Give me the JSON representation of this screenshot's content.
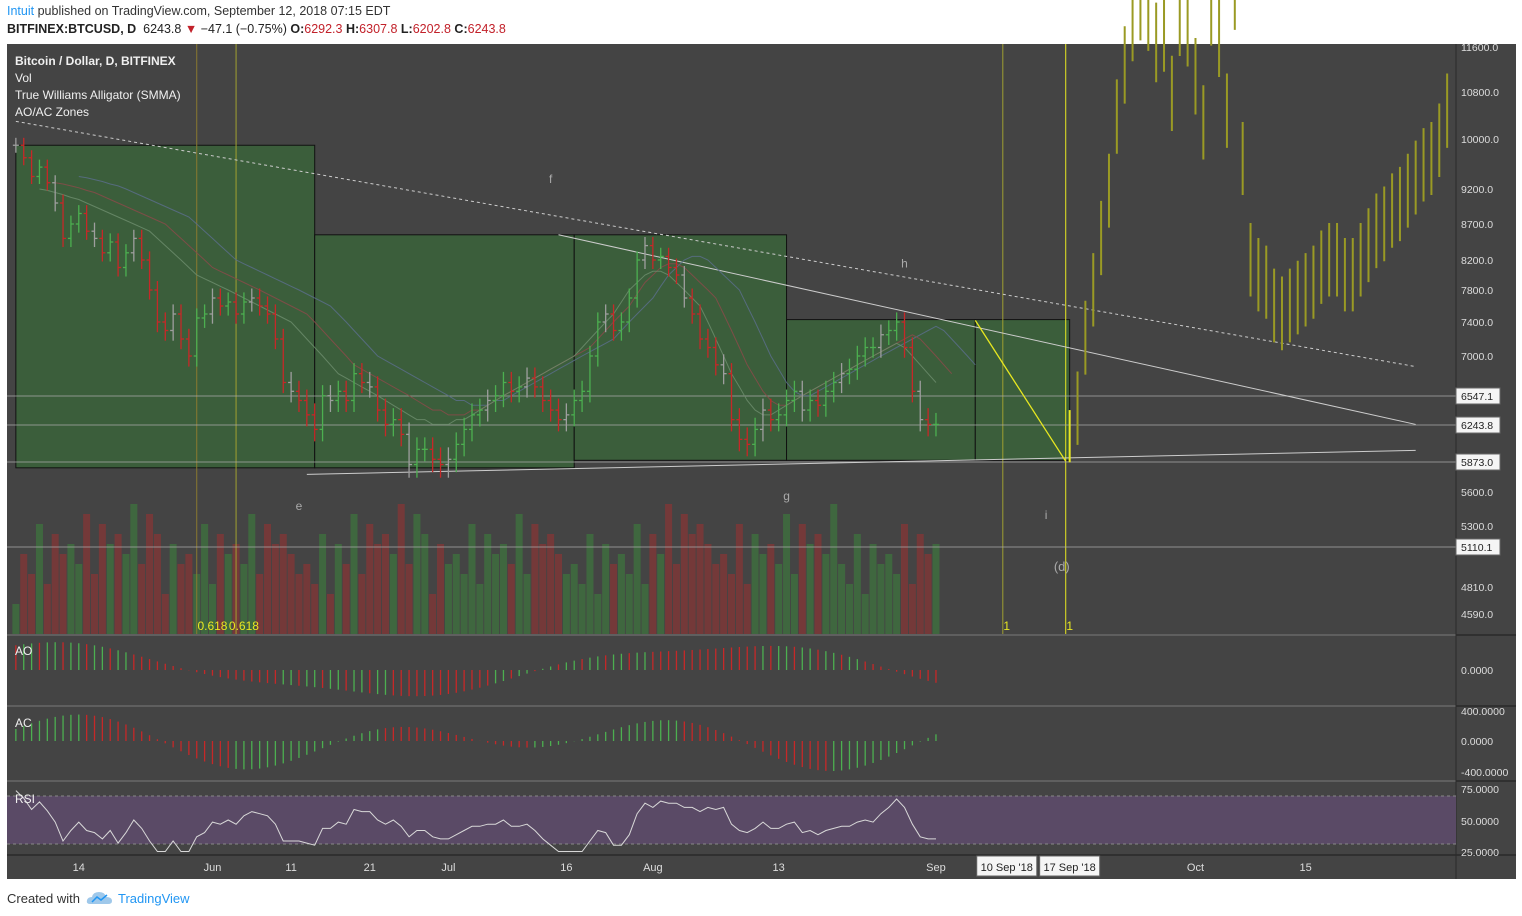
{
  "header": {
    "author": "Intuit",
    "published": "published on TradingView.com, September 12, 2018 07:15 EDT",
    "symbol": "BITFINEX:BTCUSD, D",
    "last": "6243.8",
    "change": "−47.1 (−0.75%)",
    "o_label": "O:",
    "o": "6292.3",
    "h_label": "H:",
    "h": "6307.8",
    "l_label": "L:",
    "l": "6202.8",
    "c_label": "C:",
    "c": "6243.8"
  },
  "legend": [
    "Bitcoin / Dollar, D, BITFINEX",
    "Vol",
    "True Williams Alligator (SMMA)",
    "AO/AC Zones"
  ],
  "pane_labels": {
    "ao": "AO",
    "ac": "AC",
    "rsi": "RSI"
  },
  "footer": {
    "created": "Created with",
    "brand": "TradingView"
  },
  "colors": {
    "bg": "#444444",
    "up": "#4caf50",
    "down": "#c62828",
    "neutral": "#9e9e9e",
    "zone": "#3b5e3b",
    "olive": "#9a9a24",
    "rsi_band": "#5a4a66",
    "yellow": "#e8e820"
  },
  "chart_data": [
    {
      "type": "bar",
      "name": "price",
      "title": "Bitcoin / Dollar, D, BITFINEX",
      "y_axis_labels": [
        "11600.0",
        "10800.0",
        "10000.0",
        "9200.0",
        "8700.0",
        "8200.0",
        "7800.0",
        "7400.0",
        "7000.0",
        "5600.0",
        "5300.0",
        "4810.0",
        "4590.0"
      ],
      "y_axis_ticks": [
        11600,
        10800,
        10000,
        9200,
        8700,
        8200,
        7800,
        7400,
        7000,
        5600,
        5300,
        4810,
        4590
      ],
      "price_tags": [
        {
          "label": "6547.1",
          "value": 6547.1
        },
        {
          "label": "6243.8",
          "value": 6243.8
        },
        {
          "label": "5873.0",
          "value": 5873.0
        },
        {
          "label": "5110.1",
          "value": 5110.1
        }
      ],
      "ylim": [
        4500,
        12000
      ],
      "x_axis_labels": [
        "14",
        "Jun",
        "11",
        "21",
        "Jul",
        "16",
        "Aug",
        "13",
        "Sep",
        "10 Sep '18",
        "17 Sep '18",
        "Oct",
        "15"
      ],
      "x_axis_days": [
        -6,
        11,
        21,
        31,
        41,
        56,
        67,
        83,
        103,
        112,
        120,
        136,
        150
      ],
      "xlim": [
        -15,
        169
      ],
      "annotations": [
        {
          "label": "f",
          "day": 54,
          "value": 9300
        },
        {
          "label": "e",
          "day": 22,
          "value": 5440
        },
        {
          "label": "g",
          "day": 84,
          "value": 5530
        },
        {
          "label": "h",
          "day": 99,
          "value": 8100
        },
        {
          "label": "i",
          "day": 117,
          "value": 5360
        },
        {
          "label": "(d)",
          "day": 119,
          "value": 4930
        },
        {
          "label": "0.618",
          "day": 11,
          "value": 4500
        },
        {
          "label": "0.618",
          "day": 15,
          "value": 4500
        },
        {
          "label": "1",
          "day": 112,
          "value": 4500
        },
        {
          "label": "1",
          "day": 120,
          "value": 4500
        }
      ],
      "series": [
        {
          "name": "BTCUSD",
          "start_day": -14,
          "closes": [
            9900,
            9700,
            9400,
            9550,
            9300,
            9000,
            8500,
            8700,
            8850,
            8600,
            8500,
            8300,
            8450,
            8100,
            8300,
            8500,
            8200,
            7800,
            7400,
            7300,
            7500,
            7200,
            7000,
            7450,
            7500,
            7700,
            7600,
            7650,
            7500,
            7650,
            7700,
            7600,
            7500,
            7200,
            6700,
            6600,
            6500,
            6350,
            6200,
            6550,
            6500,
            6600,
            6500,
            6800,
            6700,
            6650,
            6400,
            6250,
            6300,
            6150,
            5850,
            6000,
            6000,
            5900,
            5850,
            5900,
            6050,
            6200,
            6350,
            6400,
            6500,
            6550,
            6700,
            6600,
            6650,
            6750,
            6650,
            6500,
            6400,
            6300,
            6350,
            6500,
            6600,
            7000,
            7400,
            7500,
            7300,
            7400,
            7700,
            8200,
            8400,
            8200,
            8250,
            8100,
            8000,
            7700,
            7500,
            7200,
            7100,
            6900,
            6800,
            6300,
            6100,
            6050,
            6200,
            6400,
            6300,
            6350,
            6500,
            6600,
            6400,
            6500,
            6450,
            6600,
            6700,
            6800,
            6850,
            7000,
            7100,
            7100,
            7250,
            7300,
            7400,
            7100,
            6600,
            6300,
            6250,
            6250
          ],
          "ma_lips": [
            9200,
            9180,
            9150,
            9120,
            9080,
            9050,
            9000,
            8950,
            8900,
            8850,
            8800,
            8750,
            8700,
            8650,
            8600,
            8500,
            8400,
            8300,
            8200,
            8100,
            8000,
            7950,
            7900,
            7850,
            7800,
            7750,
            7700,
            7650,
            7600,
            7550,
            7500,
            7450,
            7400,
            7300,
            7200,
            7100,
            7000,
            6900,
            6800,
            6750,
            6700,
            6650,
            6600,
            6550,
            6500,
            6450,
            6400,
            6350,
            6300,
            6300,
            6250,
            6250,
            6250,
            6300,
            6300,
            6350,
            6400,
            6450,
            6500,
            6550,
            6600,
            6650,
            6700,
            6750,
            6800,
            6850,
            6900,
            6950,
            7000,
            7100,
            7200,
            7300,
            7400,
            7500,
            7650,
            7800,
            7900,
            8000,
            8050,
            8050,
            8000,
            7900,
            7800,
            7700,
            7600,
            7400,
            7200,
            7000,
            6800,
            6650,
            6500,
            6400,
            6350,
            6350,
            6400,
            6450,
            6500,
            6550,
            6600,
            6650,
            6700,
            6750,
            6800,
            6850,
            6900,
            6950,
            7000,
            7050,
            7100,
            7150,
            7100,
            7000,
            6900,
            6800,
            6700
          ]
        },
        {
          "name": "Volume",
          "values": []
        }
      ]
    }
  ]
}
